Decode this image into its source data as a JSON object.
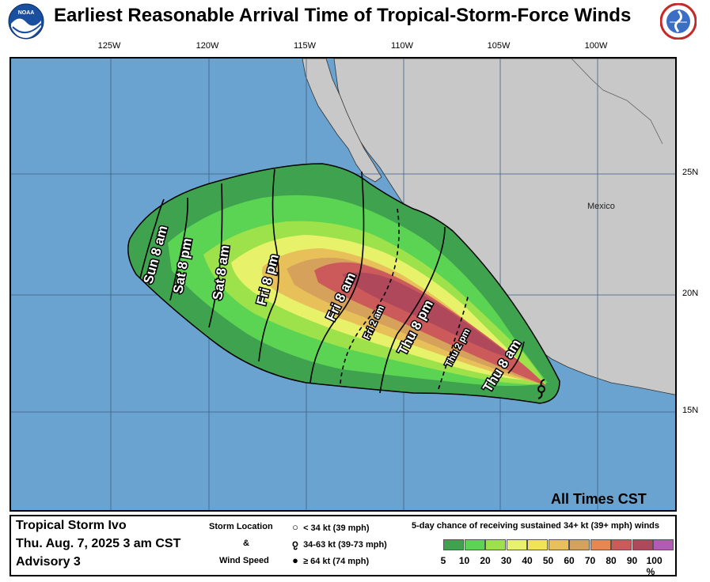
{
  "title": "Earliest Reasonable Arrival Time of Tropical-Storm-Force Winds",
  "logos": {
    "left": "NOAA",
    "right": "NATIONAL WEATHER SERVICE"
  },
  "map": {
    "longitude_labels": [
      "125W",
      "120W",
      "115W",
      "110W",
      "105W",
      "100W"
    ],
    "latitude_labels": [
      "25N",
      "20N",
      "15N"
    ],
    "country_label": "Mexico",
    "time_zone_note": "All Times CST",
    "colors": {
      "ocean": "#6aa3cf",
      "land": "#c8c8c8"
    },
    "arrival_labels": [
      {
        "text": "Thu 8 am",
        "style": "solid"
      },
      {
        "text": "Thu 2 pm",
        "style": "dashed"
      },
      {
        "text": "Thu 8 pm",
        "style": "solid"
      },
      {
        "text": "Fri 2 am",
        "style": "dashed"
      },
      {
        "text": "Fri 8 am",
        "style": "solid"
      },
      {
        "text": "Fri 8 pm",
        "style": "solid"
      },
      {
        "text": "Sat 8 am",
        "style": "solid"
      },
      {
        "text": "Sat 8 pm",
        "style": "solid"
      },
      {
        "text": "Sun 8 am",
        "style": "solid"
      }
    ],
    "storm_symbol": "tropical-storm-icon"
  },
  "legend": {
    "storm_name": "Tropical Storm Ivo",
    "date": "Thu. Aug. 7, 2025  3 am CST",
    "advisory": "Advisory 3",
    "symbol_header": "Storm Location",
    "symbol_amp": "&",
    "symbol_footer": "Wind Speed",
    "symbols": [
      {
        "icon": "open-circle-icon",
        "label": "< 34 kt (39 mph)"
      },
      {
        "icon": "tropical-storm-icon",
        "label": "34-63 kt (39-73 mph)"
      },
      {
        "icon": "hurricane-icon",
        "label": "≥ 64 kt (74 mph)"
      }
    ],
    "probability_title": "5-day chance of receiving sustained 34+ kt (39+ mph) winds",
    "probability_ticks": [
      "5",
      "10",
      "20",
      "30",
      "40",
      "50",
      "60",
      "70",
      "80",
      "90",
      "100 %"
    ],
    "probability_colors": [
      "#3fa24e",
      "#5bd353",
      "#9de24a",
      "#e8f16a",
      "#f2e25a",
      "#e8c05a",
      "#d6a15a",
      "#e8864f",
      "#cc5a5a",
      "#b0485c",
      "#b25ab6"
    ]
  }
}
